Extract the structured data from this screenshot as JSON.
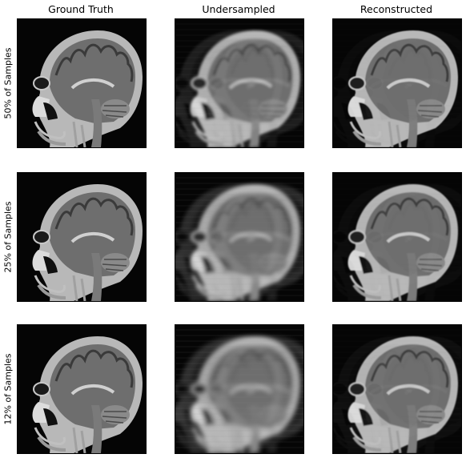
{
  "columns": [
    {
      "title": "Ground Truth",
      "mode": "ground_truth"
    },
    {
      "title": "Undersampled",
      "mode": "undersampled"
    },
    {
      "title": "Reconstructed",
      "mode": "reconstructed"
    }
  ],
  "rows": [
    {
      "label": "50% of Samples",
      "sampling_fraction": 0.5
    },
    {
      "label": "25% of Samples",
      "sampling_fraction": 0.25
    },
    {
      "label": "12% of Samples",
      "sampling_fraction": 0.12
    }
  ],
  "image_content": "sagittal-brain-mri",
  "colormap": "gray"
}
